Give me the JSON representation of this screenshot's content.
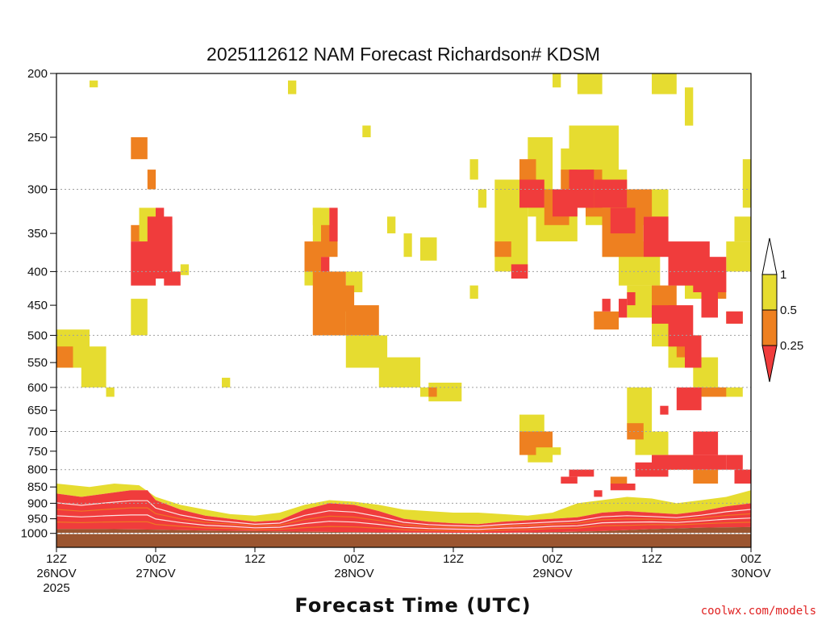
{
  "chart_data": {
    "type": "heatmap",
    "title": "2025112612 NAM Forecast Richardson# KDSM",
    "xlabel": "Forecast Time (UTC)",
    "ylabel": "",
    "credit": "coolwx.com/models",
    "x_range_hours": [
      0,
      84
    ],
    "y_range_hpa": [
      200,
      1050
    ],
    "y_scale": "log",
    "y_ticks": [
      200,
      250,
      300,
      350,
      400,
      450,
      500,
      550,
      600,
      650,
      700,
      750,
      800,
      850,
      900,
      950,
      1000
    ],
    "y_gridlines": [
      300,
      400,
      500,
      600,
      700,
      800,
      900,
      1000
    ],
    "x_ticks": [
      {
        "hour": 0,
        "line1": "12Z",
        "line2": "26NOV",
        "line3": "2025"
      },
      {
        "hour": 12,
        "line1": "00Z",
        "line2": "27NOV",
        "line3": ""
      },
      {
        "hour": 24,
        "line1": "12Z",
        "line2": "",
        "line3": ""
      },
      {
        "hour": 36,
        "line1": "00Z",
        "line2": "28NOV",
        "line3": ""
      },
      {
        "hour": 48,
        "line1": "12Z",
        "line2": "",
        "line3": ""
      },
      {
        "hour": 60,
        "line1": "00Z",
        "line2": "29NOV",
        "line3": ""
      },
      {
        "hour": 72,
        "line1": "12Z",
        "line2": "",
        "line3": ""
      },
      {
        "hour": 84,
        "line1": "00Z",
        "line2": "30NOV",
        "line3": ""
      }
    ],
    "legend": {
      "placement": "right",
      "levels": [
        "0.25",
        "0.5",
        "1"
      ],
      "categories": [
        {
          "name": "< 0.25",
          "color": "#f03c3c"
        },
        {
          "name": "0.25 - 0.5",
          "color": "#ee8020"
        },
        {
          "name": "0.5 - 1",
          "color": "#e6dc30"
        },
        {
          "name": "> 1",
          "color": "#ffffff"
        }
      ]
    },
    "colors": {
      "lt025": "#f03c3c",
      "lt05": "#ee8020",
      "lt1": "#e6dc30",
      "ground": "#9b5530",
      "grid": "#a0a0a0"
    },
    "series": [
      {
        "name": "0.5 - 1",
        "cat": 3,
        "regions": [
          [
            0,
            4,
            490,
            560
          ],
          [
            3,
            6,
            520,
            600
          ],
          [
            6,
            7,
            600,
            620
          ],
          [
            9,
            11,
            440,
            500
          ],
          [
            10,
            12,
            320,
            400
          ],
          [
            11,
            14,
            340,
            400
          ],
          [
            15,
            16,
            390,
            405
          ],
          [
            30,
            33,
            380,
            420
          ],
          [
            31,
            33,
            320,
            360
          ],
          [
            32,
            35,
            420,
            500
          ],
          [
            35,
            40,
            500,
            560
          ],
          [
            39,
            44,
            540,
            600
          ],
          [
            44,
            47,
            600,
            620
          ],
          [
            45,
            49,
            590,
            630
          ],
          [
            44,
            46,
            355,
            385
          ],
          [
            50,
            51,
            270,
            290
          ],
          [
            51,
            52,
            300,
            320
          ],
          [
            53,
            57,
            290,
            400
          ],
          [
            57,
            60,
            250,
            330
          ],
          [
            58,
            63,
            300,
            360
          ],
          [
            61,
            65,
            260,
            300
          ],
          [
            62,
            68,
            240,
            320
          ],
          [
            64,
            69,
            280,
            340
          ],
          [
            66,
            70,
            330,
            380
          ],
          [
            68,
            74,
            300,
            340
          ],
          [
            68,
            73,
            360,
            420
          ],
          [
            69,
            72,
            420,
            470
          ],
          [
            72,
            75,
            460,
            520
          ],
          [
            74,
            78,
            500,
            560
          ],
          [
            76,
            79,
            380,
            440
          ],
          [
            77,
            80,
            540,
            600
          ],
          [
            81,
            84,
            360,
            400
          ],
          [
            82,
            84,
            330,
            360
          ],
          [
            83,
            84,
            270,
            320
          ],
          [
            60,
            61,
            200,
            210
          ],
          [
            63,
            66,
            200,
            215
          ],
          [
            72,
            75,
            200,
            215
          ],
          [
            76,
            77,
            210,
            240
          ],
          [
            56,
            59,
            660,
            740
          ],
          [
            57,
            60,
            720,
            780
          ],
          [
            59,
            61,
            740,
            760
          ],
          [
            69,
            72,
            600,
            700
          ],
          [
            70,
            74,
            700,
            760
          ],
          [
            74,
            77,
            760,
            800
          ],
          [
            80,
            83,
            600,
            620
          ],
          [
            4,
            5,
            205,
            210
          ],
          [
            28,
            29,
            205,
            215
          ],
          [
            35,
            37,
            400,
            430
          ],
          [
            31,
            32,
            320,
            340
          ],
          [
            40,
            41,
            330,
            350
          ],
          [
            42,
            43,
            350,
            380
          ],
          [
            50,
            51,
            420,
            440
          ],
          [
            20,
            21,
            580,
            600
          ],
          [
            41,
            42,
            580,
            600
          ],
          [
            37,
            38,
            240,
            250
          ]
        ]
      },
      {
        "name": "0.25 - 0.5",
        "cat": 2,
        "regions": [
          [
            0,
            2,
            520,
            560
          ],
          [
            9,
            11,
            250,
            270
          ],
          [
            11,
            12,
            280,
            300
          ],
          [
            9,
            10,
            340,
            360
          ],
          [
            30,
            32,
            360,
            400
          ],
          [
            31,
            35,
            400,
            500
          ],
          [
            35,
            39,
            450,
            500
          ],
          [
            33,
            36,
            420,
            460
          ],
          [
            32,
            34,
            340,
            380
          ],
          [
            53,
            55,
            360,
            380
          ],
          [
            56,
            58,
            270,
            310
          ],
          [
            59,
            62,
            300,
            340
          ],
          [
            61,
            63,
            280,
            300
          ],
          [
            64,
            66,
            280,
            330
          ],
          [
            66,
            71,
            320,
            380
          ],
          [
            69,
            72,
            300,
            330
          ],
          [
            65,
            68,
            460,
            490
          ],
          [
            72,
            75,
            420,
            480
          ],
          [
            78,
            81,
            400,
            440
          ],
          [
            75,
            77,
            500,
            540
          ],
          [
            78,
            81,
            600,
            620
          ],
          [
            56,
            58,
            700,
            760
          ],
          [
            58,
            60,
            700,
            740
          ],
          [
            69,
            71,
            680,
            720
          ],
          [
            72,
            75,
            780,
            800
          ],
          [
            67,
            69,
            820,
            840
          ],
          [
            77,
            80,
            800,
            840
          ],
          [
            45,
            46,
            600,
            620
          ],
          [
            65,
            66,
            460,
            470
          ],
          [
            81,
            83,
            460,
            480
          ]
        ]
      },
      {
        "name": "< 0.25",
        "cat": 1,
        "regions": [
          [
            9,
            12,
            360,
            420
          ],
          [
            11,
            14,
            330,
            400
          ],
          [
            10,
            14,
            380,
            410
          ],
          [
            13,
            15,
            400,
            420
          ],
          [
            12,
            13,
            320,
            340
          ],
          [
            32,
            33,
            380,
            400
          ],
          [
            33,
            34,
            320,
            360
          ],
          [
            55,
            57,
            390,
            410
          ],
          [
            56,
            59,
            290,
            320
          ],
          [
            60,
            63,
            300,
            330
          ],
          [
            62,
            65,
            280,
            320
          ],
          [
            65,
            69,
            290,
            320
          ],
          [
            67,
            70,
            320,
            350
          ],
          [
            71,
            74,
            330,
            380
          ],
          [
            74,
            79,
            360,
            420
          ],
          [
            77,
            81,
            380,
            430
          ],
          [
            72,
            75,
            450,
            480
          ],
          [
            74,
            77,
            450,
            520
          ],
          [
            76,
            78,
            500,
            560
          ],
          [
            78,
            80,
            420,
            470
          ],
          [
            81,
            83,
            460,
            480
          ],
          [
            75,
            78,
            600,
            650
          ],
          [
            77,
            80,
            700,
            760
          ],
          [
            70,
            74,
            780,
            820
          ],
          [
            72,
            78,
            760,
            800
          ],
          [
            78,
            81,
            760,
            800
          ],
          [
            62,
            65,
            800,
            820
          ],
          [
            67,
            70,
            840,
            860
          ],
          [
            65,
            66,
            860,
            880
          ],
          [
            61,
            63,
            820,
            840
          ],
          [
            68,
            69,
            440,
            470
          ],
          [
            69,
            70,
            430,
            450
          ],
          [
            66,
            67,
            440,
            460
          ],
          [
            81,
            83,
            760,
            800
          ],
          [
            82,
            84,
            800,
            840
          ],
          [
            73,
            74,
            640,
            660
          ]
        ]
      }
    ],
    "pbl_top_hpa": [
      [
        0,
        870
      ],
      [
        3,
        880
      ],
      [
        6,
        870
      ],
      [
        9,
        860
      ],
      [
        11,
        860
      ],
      [
        12,
        890
      ],
      [
        15,
        920
      ],
      [
        18,
        940
      ],
      [
        21,
        950
      ],
      [
        24,
        960
      ],
      [
        27,
        955
      ],
      [
        30,
        920
      ],
      [
        33,
        900
      ],
      [
        36,
        905
      ],
      [
        39,
        925
      ],
      [
        42,
        950
      ],
      [
        45,
        960
      ],
      [
        48,
        965
      ],
      [
        51,
        968
      ],
      [
        54,
        960
      ],
      [
        57,
        955
      ],
      [
        60,
        950
      ],
      [
        63,
        945
      ],
      [
        66,
        930
      ],
      [
        69,
        925
      ],
      [
        72,
        930
      ],
      [
        75,
        935
      ],
      [
        78,
        925
      ],
      [
        81,
        910
      ],
      [
        84,
        900
      ]
    ],
    "pbl_mix_top_hpa": [
      [
        0,
        840
      ],
      [
        4,
        850
      ],
      [
        7,
        840
      ],
      [
        10,
        845
      ],
      [
        12,
        880
      ],
      [
        15,
        905
      ],
      [
        18,
        920
      ],
      [
        21,
        935
      ],
      [
        24,
        940
      ],
      [
        27,
        930
      ],
      [
        30,
        905
      ],
      [
        33,
        890
      ],
      [
        36,
        895
      ],
      [
        39,
        905
      ],
      [
        42,
        920
      ],
      [
        45,
        925
      ],
      [
        48,
        930
      ],
      [
        51,
        930
      ],
      [
        54,
        935
      ],
      [
        57,
        940
      ],
      [
        60,
        930
      ],
      [
        63,
        900
      ],
      [
        66,
        890
      ],
      [
        69,
        880
      ],
      [
        72,
        885
      ],
      [
        75,
        900
      ],
      [
        78,
        890
      ],
      [
        81,
        880
      ],
      [
        84,
        860
      ]
    ],
    "surface_hpa": [
      [
        0,
        985
      ],
      [
        6,
        985
      ],
      [
        12,
        987
      ],
      [
        18,
        990
      ],
      [
        24,
        992
      ],
      [
        30,
        994
      ],
      [
        36,
        996
      ],
      [
        42,
        997
      ],
      [
        48,
        998
      ],
      [
        54,
        998
      ],
      [
        60,
        996
      ],
      [
        66,
        992
      ],
      [
        72,
        985
      ],
      [
        78,
        980
      ],
      [
        84,
        978
      ]
    ]
  }
}
